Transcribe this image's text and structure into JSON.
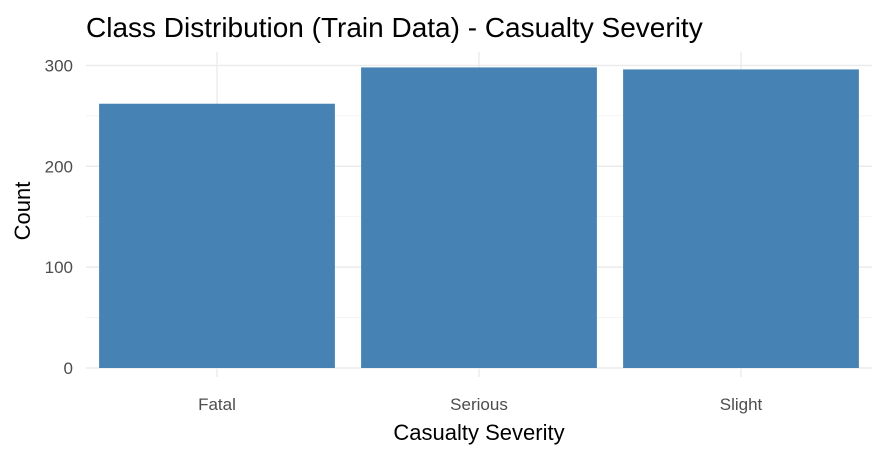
{
  "chart_data": {
    "type": "bar",
    "title": "Class Distribution (Train Data) - Casualty Severity",
    "xlabel": "Casualty Severity",
    "ylabel": "Count",
    "categories": [
      "Fatal",
      "Serious",
      "Slight"
    ],
    "values": [
      262,
      298,
      296
    ],
    "ylim": [
      0,
      300
    ],
    "yticks": [
      0,
      100,
      200,
      300
    ],
    "bar_color": "#4682B4",
    "grid": true,
    "legend": "none"
  }
}
